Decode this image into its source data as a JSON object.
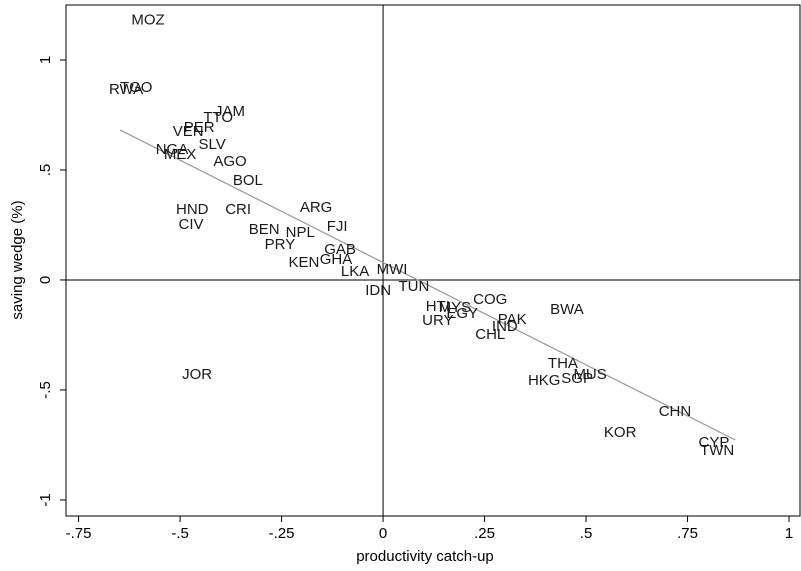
{
  "chart_data": {
    "type": "scatter",
    "x_label": "productivity catch-up",
    "y_label": "saving wedge (%)",
    "labels": [
      "MOZ",
      "RWA",
      "TGO",
      "JAM",
      "TTO",
      "PER",
      "VEN",
      "SLV",
      "NGA",
      "MEX",
      "AGO",
      "BOL",
      "HND",
      "CRI",
      "ARG",
      "FJI",
      "CIV",
      "BEN",
      "NPL",
      "PRY",
      "GAB",
      "KEN",
      "GHA",
      "LKA",
      "MWI",
      "TUN",
      "IDN",
      "HTI",
      "MYS",
      "COG",
      "EGY",
      "URY",
      "PAK",
      "IND",
      "CHL",
      "BWA",
      "THA",
      "MUS",
      "SGP",
      "HKG",
      "JOR",
      "CHN",
      "KOR",
      "CYP",
      "TWN"
    ],
    "x": [
      -0.579,
      -0.633,
      -0.608,
      -0.377,
      -0.406,
      -0.453,
      -0.48,
      -0.421,
      -0.52,
      -0.5,
      -0.377,
      -0.333,
      -0.47,
      -0.357,
      -0.165,
      -0.113,
      -0.473,
      -0.293,
      -0.204,
      -0.254,
      -0.106,
      -0.195,
      -0.116,
      -0.069,
      0.022,
      0.076,
      -0.012,
      0.135,
      0.177,
      0.264,
      0.195,
      0.135,
      0.318,
      0.3,
      0.264,
      0.453,
      0.443,
      0.51,
      0.478,
      0.397,
      -0.458,
      0.719,
      0.584,
      0.815,
      0.823
    ],
    "y": [
      1.18,
      0.864,
      0.873,
      0.764,
      0.736,
      0.691,
      0.673,
      0.614,
      0.591,
      0.568,
      0.536,
      0.45,
      0.318,
      0.318,
      0.327,
      0.241,
      0.25,
      0.227,
      0.214,
      0.159,
      0.136,
      0.077,
      0.091,
      0.036,
      0.045,
      -0.032,
      -0.05,
      -0.123,
      -0.127,
      -0.091,
      -0.155,
      -0.186,
      -0.182,
      -0.214,
      -0.25,
      -0.136,
      -0.382,
      -0.432,
      -0.45,
      -0.459,
      -0.432,
      -0.6,
      -0.695,
      -0.741,
      -0.777
    ],
    "fit_line": {
      "x": [
        -0.648,
        0.867
      ],
      "y": [
        0.682,
        -0.727
      ]
    },
    "xline": 0,
    "yline": 0,
    "xlim": [
      -0.781,
      1.027
    ],
    "ylim": [
      -1.073,
      1.25
    ],
    "xticks": [
      {
        "value": -0.75,
        "label": "-.75"
      },
      {
        "value": -0.5,
        "label": "-.5"
      },
      {
        "value": -0.25,
        "label": "-.25"
      },
      0,
      {
        "value": 0.25,
        "label": ".25"
      },
      {
        "value": 0.5,
        "label": ".5"
      },
      {
        "value": 0.75,
        "label": ".75"
      },
      1
    ],
    "yticks": [
      -1,
      {
        "value": -0.5,
        "label": "-.5"
      },
      0,
      {
        "value": 0.5,
        "label": ".5"
      },
      1
    ]
  }
}
